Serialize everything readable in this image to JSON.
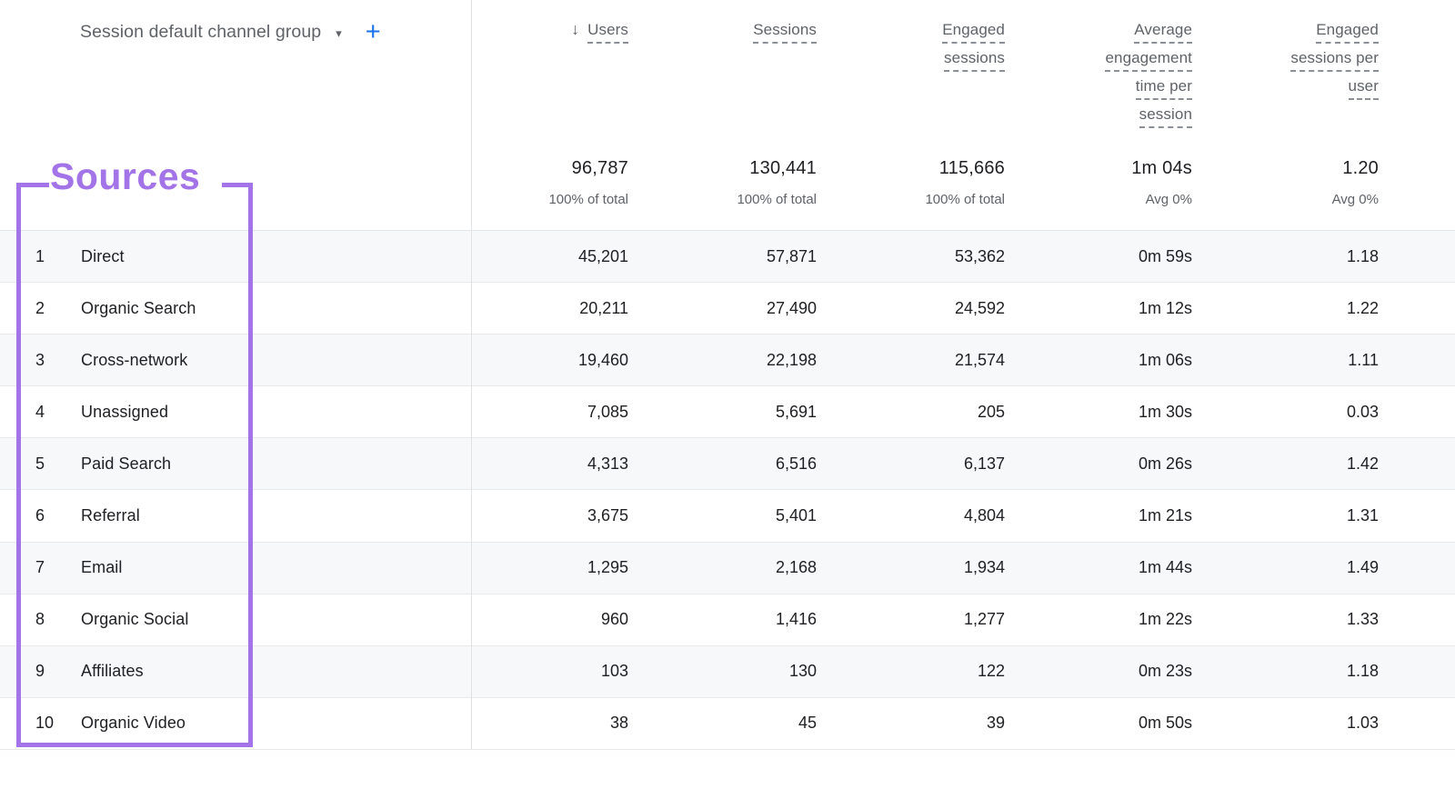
{
  "header": {
    "dimension_label": "Session default channel group",
    "dropdown_caret": "▾",
    "add_button_label": "+",
    "sort_arrow": "↓",
    "columns": [
      {
        "id": "users",
        "key": "users",
        "lines": [
          "Users"
        ],
        "sorted": true,
        "total": "96,787",
        "subtotal": "100% of total"
      },
      {
        "id": "sessions",
        "key": "sessions",
        "lines": [
          "Sessions"
        ],
        "total": "130,441",
        "subtotal": "100% of total"
      },
      {
        "id": "engaged-sessions",
        "key": "engaged_sessions",
        "lines": [
          "Engaged",
          "sessions"
        ],
        "total": "115,666",
        "subtotal": "100% of total"
      },
      {
        "id": "average-engagement-time-per-session",
        "key": "avg_engagement_time",
        "lines": [
          "Average",
          "engagement",
          "time per",
          "session"
        ],
        "total": "1m 04s",
        "subtotal": "Avg 0%"
      },
      {
        "id": "engaged-sessions-per-user",
        "key": "engaged_sessions_per_user",
        "lines": [
          "Engaged",
          "sessions per",
          "user"
        ],
        "total": "1.20",
        "subtotal": "Avg 0%"
      }
    ]
  },
  "rows": [
    {
      "index": "1",
      "channel": "Direct",
      "users": "45,201",
      "sessions": "57,871",
      "engaged_sessions": "53,362",
      "avg_engagement_time": "0m 59s",
      "engaged_sessions_per_user": "1.18"
    },
    {
      "index": "2",
      "channel": "Organic Search",
      "users": "20,211",
      "sessions": "27,490",
      "engaged_sessions": "24,592",
      "avg_engagement_time": "1m 12s",
      "engaged_sessions_per_user": "1.22"
    },
    {
      "index": "3",
      "channel": "Cross-network",
      "users": "19,460",
      "sessions": "22,198",
      "engaged_sessions": "21,574",
      "avg_engagement_time": "1m 06s",
      "engaged_sessions_per_user": "1.11"
    },
    {
      "index": "4",
      "channel": "Unassigned",
      "users": "7,085",
      "sessions": "5,691",
      "engaged_sessions": "205",
      "avg_engagement_time": "1m 30s",
      "engaged_sessions_per_user": "0.03"
    },
    {
      "index": "5",
      "channel": "Paid Search",
      "users": "4,313",
      "sessions": "6,516",
      "engaged_sessions": "6,137",
      "avg_engagement_time": "0m 26s",
      "engaged_sessions_per_user": "1.42"
    },
    {
      "index": "6",
      "channel": "Referral",
      "users": "3,675",
      "sessions": "5,401",
      "engaged_sessions": "4,804",
      "avg_engagement_time": "1m 21s",
      "engaged_sessions_per_user": "1.31"
    },
    {
      "index": "7",
      "channel": "Email",
      "users": "1,295",
      "sessions": "2,168",
      "engaged_sessions": "1,934",
      "avg_engagement_time": "1m 44s",
      "engaged_sessions_per_user": "1.49"
    },
    {
      "index": "8",
      "channel": "Organic Social",
      "users": "960",
      "sessions": "1,416",
      "engaged_sessions": "1,277",
      "avg_engagement_time": "1m 22s",
      "engaged_sessions_per_user": "1.33"
    },
    {
      "index": "9",
      "channel": "Affiliates",
      "users": "103",
      "sessions": "130",
      "engaged_sessions": "122",
      "avg_engagement_time": "0m 23s",
      "engaged_sessions_per_user": "1.18"
    },
    {
      "index": "10",
      "channel": "Organic Video",
      "users": "38",
      "sessions": "45",
      "engaged_sessions": "39",
      "avg_engagement_time": "0m 50s",
      "engaged_sessions_per_user": "1.03"
    }
  ],
  "annotation": {
    "label": "Sources"
  },
  "colors": {
    "accent_blue": "#1a73e8",
    "annotation_purple": "#a373e8",
    "header_text": "#5f6368",
    "body_text": "#202124",
    "row_stripe": "#f7f8fa",
    "row_border": "#e7e9eb"
  }
}
